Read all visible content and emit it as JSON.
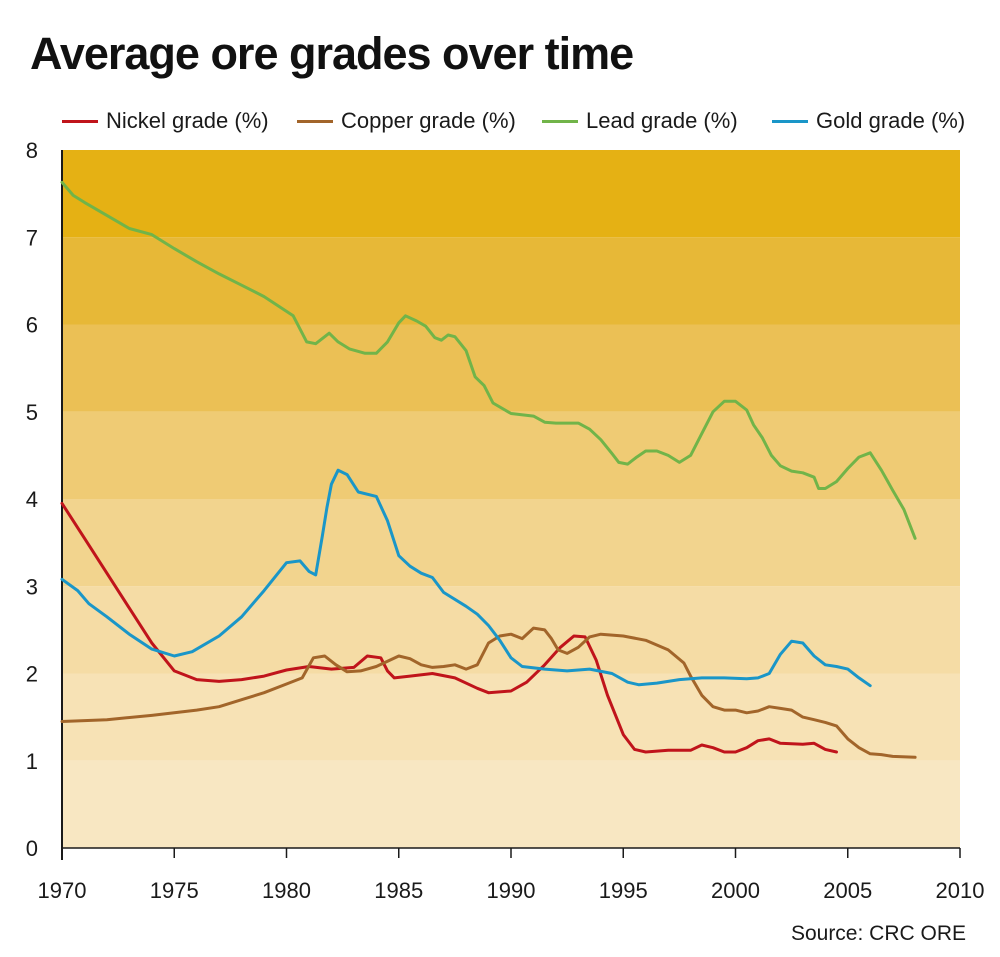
{
  "title": "Average ore grades over time",
  "source": "Source: CRC ORE",
  "chart_data": {
    "type": "line",
    "title": "Average ore grades over time",
    "xlabel": "",
    "ylabel": "",
    "xlim": [
      1970,
      2010
    ],
    "ylim": [
      0,
      8
    ],
    "x_ticks": [
      1970,
      1975,
      1980,
      1985,
      1990,
      1995,
      2000,
      2005,
      2010
    ],
    "y_ticks": [
      0,
      1,
      2,
      3,
      4,
      5,
      6,
      7,
      8
    ],
    "grid": false,
    "legend_position": "top",
    "background_bands": [
      {
        "from": 0,
        "to": 1,
        "color": "#f8e7c2"
      },
      {
        "from": 1,
        "to": 2,
        "color": "#f7e2b5"
      },
      {
        "from": 2,
        "to": 3,
        "color": "#f5dca5"
      },
      {
        "from": 3,
        "to": 4,
        "color": "#f2d48e"
      },
      {
        "from": 4,
        "to": 5,
        "color": "#efcb74"
      },
      {
        "from": 5,
        "to": 6,
        "color": "#ebc055"
      },
      {
        "from": 6,
        "to": 7,
        "color": "#e7b837"
      },
      {
        "from": 7,
        "to": 8,
        "color": "#e5b114"
      }
    ],
    "series": [
      {
        "name": "Nickel grade (%)",
        "color": "#c0141b",
        "points": [
          [
            1970,
            3.95
          ],
          [
            1971,
            3.55
          ],
          [
            1972,
            3.15
          ],
          [
            1973,
            2.75
          ],
          [
            1974,
            2.35
          ],
          [
            1975,
            2.03
          ],
          [
            1976,
            1.93
          ],
          [
            1977,
            1.91
          ],
          [
            1978,
            1.93
          ],
          [
            1979,
            1.97
          ],
          [
            1980,
            2.04
          ],
          [
            1981,
            2.08
          ],
          [
            1982,
            2.05
          ],
          [
            1983,
            2.07
          ],
          [
            1983.6,
            2.2
          ],
          [
            1984.2,
            2.18
          ],
          [
            1984.5,
            2.03
          ],
          [
            1984.8,
            1.95
          ],
          [
            1985.5,
            1.97
          ],
          [
            1986.5,
            2.0
          ],
          [
            1987.5,
            1.95
          ],
          [
            1988.5,
            1.83
          ],
          [
            1989,
            1.78
          ],
          [
            1990,
            1.8
          ],
          [
            1990.7,
            1.9
          ],
          [
            1991.5,
            2.1
          ],
          [
            1992.2,
            2.3
          ],
          [
            1992.8,
            2.43
          ],
          [
            1993.3,
            2.42
          ],
          [
            1993.8,
            2.15
          ],
          [
            1994.3,
            1.75
          ],
          [
            1995,
            1.3
          ],
          [
            1995.5,
            1.13
          ],
          [
            1996,
            1.1
          ],
          [
            1997,
            1.12
          ],
          [
            1998,
            1.12
          ],
          [
            1998.5,
            1.18
          ],
          [
            1999,
            1.15
          ],
          [
            1999.5,
            1.1
          ],
          [
            2000,
            1.1
          ],
          [
            2000.5,
            1.15
          ],
          [
            2001,
            1.23
          ],
          [
            2001.5,
            1.25
          ],
          [
            2002,
            1.2
          ],
          [
            2003,
            1.19
          ],
          [
            2003.5,
            1.2
          ],
          [
            2004,
            1.13
          ],
          [
            2004.5,
            1.1
          ]
        ]
      },
      {
        "name": "Copper grade (%)",
        "color": "#a2652a",
        "points": [
          [
            1970,
            1.45
          ],
          [
            1972,
            1.47
          ],
          [
            1974,
            1.52
          ],
          [
            1976,
            1.58
          ],
          [
            1977,
            1.62
          ],
          [
            1978,
            1.7
          ],
          [
            1979,
            1.78
          ],
          [
            1980,
            1.88
          ],
          [
            1980.7,
            1.95
          ],
          [
            1981.2,
            2.18
          ],
          [
            1981.7,
            2.2
          ],
          [
            1982.2,
            2.1
          ],
          [
            1982.7,
            2.02
          ],
          [
            1983.3,
            2.03
          ],
          [
            1984,
            2.08
          ],
          [
            1985,
            2.2
          ],
          [
            1985.5,
            2.17
          ],
          [
            1986,
            2.1
          ],
          [
            1986.5,
            2.07
          ],
          [
            1987,
            2.08
          ],
          [
            1987.5,
            2.1
          ],
          [
            1988,
            2.05
          ],
          [
            1988.5,
            2.1
          ],
          [
            1989,
            2.35
          ],
          [
            1989.5,
            2.43
          ],
          [
            1990,
            2.45
          ],
          [
            1990.5,
            2.4
          ],
          [
            1991,
            2.52
          ],
          [
            1991.5,
            2.5
          ],
          [
            1991.8,
            2.4
          ],
          [
            1992.1,
            2.27
          ],
          [
            1992.5,
            2.23
          ],
          [
            1993,
            2.3
          ],
          [
            1993.5,
            2.42
          ],
          [
            1994,
            2.45
          ],
          [
            1995,
            2.43
          ],
          [
            1996,
            2.38
          ],
          [
            1997,
            2.27
          ],
          [
            1997.7,
            2.12
          ],
          [
            1998,
            1.97
          ],
          [
            1998.5,
            1.75
          ],
          [
            1999,
            1.62
          ],
          [
            1999.5,
            1.58
          ],
          [
            2000,
            1.58
          ],
          [
            2000.5,
            1.55
          ],
          [
            2001,
            1.57
          ],
          [
            2001.5,
            1.62
          ],
          [
            2002,
            1.6
          ],
          [
            2002.5,
            1.58
          ],
          [
            2003,
            1.5
          ],
          [
            2003.5,
            1.47
          ],
          [
            2004,
            1.44
          ],
          [
            2004.5,
            1.4
          ],
          [
            2005,
            1.25
          ],
          [
            2005.5,
            1.15
          ],
          [
            2006,
            1.08
          ],
          [
            2006.5,
            1.07
          ],
          [
            2007,
            1.05
          ],
          [
            2008,
            1.04
          ]
        ]
      },
      {
        "name": "Lead grade (%)",
        "color": "#71b449",
        "points": [
          [
            1970,
            7.63
          ],
          [
            1970.5,
            7.48
          ],
          [
            1971,
            7.4
          ],
          [
            1972,
            7.25
          ],
          [
            1973,
            7.1
          ],
          [
            1974,
            7.03
          ],
          [
            1975,
            6.87
          ],
          [
            1976,
            6.72
          ],
          [
            1977,
            6.58
          ],
          [
            1978,
            6.45
          ],
          [
            1979,
            6.32
          ],
          [
            1980.3,
            6.1
          ],
          [
            1980.9,
            5.8
          ],
          [
            1981.3,
            5.78
          ],
          [
            1981.9,
            5.9
          ],
          [
            1982.3,
            5.8
          ],
          [
            1982.8,
            5.72
          ],
          [
            1983.5,
            5.67
          ],
          [
            1984,
            5.67
          ],
          [
            1984.5,
            5.8
          ],
          [
            1985,
            6.02
          ],
          [
            1985.3,
            6.1
          ],
          [
            1985.8,
            6.04
          ],
          [
            1986.2,
            5.98
          ],
          [
            1986.6,
            5.85
          ],
          [
            1986.9,
            5.82
          ],
          [
            1987.2,
            5.88
          ],
          [
            1987.5,
            5.86
          ],
          [
            1988,
            5.7
          ],
          [
            1988.4,
            5.4
          ],
          [
            1988.8,
            5.3
          ],
          [
            1989.2,
            5.1
          ],
          [
            1990,
            4.98
          ],
          [
            1991,
            4.95
          ],
          [
            1991.5,
            4.88
          ],
          [
            1992,
            4.87
          ],
          [
            1993,
            4.87
          ],
          [
            1993.5,
            4.8
          ],
          [
            1994,
            4.68
          ],
          [
            1994.5,
            4.52
          ],
          [
            1994.8,
            4.42
          ],
          [
            1995.2,
            4.4
          ],
          [
            1995.6,
            4.48
          ],
          [
            1996,
            4.55
          ],
          [
            1996.5,
            4.55
          ],
          [
            1997,
            4.5
          ],
          [
            1997.5,
            4.42
          ],
          [
            1998,
            4.5
          ],
          [
            1998.5,
            4.75
          ],
          [
            1999,
            5.0
          ],
          [
            1999.5,
            5.12
          ],
          [
            2000,
            5.12
          ],
          [
            2000.5,
            5.02
          ],
          [
            2000.8,
            4.85
          ],
          [
            2001.2,
            4.7
          ],
          [
            2001.6,
            4.5
          ],
          [
            2002,
            4.38
          ],
          [
            2002.5,
            4.32
          ],
          [
            2003,
            4.3
          ],
          [
            2003.5,
            4.25
          ],
          [
            2003.7,
            4.12
          ],
          [
            2004,
            4.12
          ],
          [
            2004.5,
            4.2
          ],
          [
            2005,
            4.35
          ],
          [
            2005.5,
            4.48
          ],
          [
            2006,
            4.53
          ],
          [
            2006.5,
            4.33
          ],
          [
            2007,
            4.1
          ],
          [
            2007.5,
            3.88
          ],
          [
            2008,
            3.55
          ]
        ]
      },
      {
        "name": "Gold grade (%)",
        "color": "#1a96c8",
        "points": [
          [
            1970,
            3.08
          ],
          [
            1970.7,
            2.95
          ],
          [
            1971.2,
            2.8
          ],
          [
            1972,
            2.65
          ],
          [
            1973,
            2.45
          ],
          [
            1974,
            2.28
          ],
          [
            1975,
            2.2
          ],
          [
            1975.8,
            2.25
          ],
          [
            1977,
            2.43
          ],
          [
            1978,
            2.65
          ],
          [
            1979,
            2.95
          ],
          [
            1980,
            3.27
          ],
          [
            1980.6,
            3.29
          ],
          [
            1981,
            3.17
          ],
          [
            1981.3,
            3.13
          ],
          [
            1981.6,
            3.58
          ],
          [
            1981.8,
            3.9
          ],
          [
            1982,
            4.17
          ],
          [
            1982.3,
            4.33
          ],
          [
            1982.7,
            4.28
          ],
          [
            1983.2,
            4.08
          ],
          [
            1984,
            4.03
          ],
          [
            1984.5,
            3.75
          ],
          [
            1985,
            3.35
          ],
          [
            1985.5,
            3.23
          ],
          [
            1986,
            3.15
          ],
          [
            1986.5,
            3.1
          ],
          [
            1987,
            2.93
          ],
          [
            1988,
            2.77
          ],
          [
            1988.5,
            2.68
          ],
          [
            1989,
            2.55
          ],
          [
            1989.5,
            2.38
          ],
          [
            1990,
            2.18
          ],
          [
            1990.5,
            2.08
          ],
          [
            1991.5,
            2.05
          ],
          [
            1992.5,
            2.03
          ],
          [
            1993.5,
            2.05
          ],
          [
            1994.5,
            2.0
          ],
          [
            1995.2,
            1.9
          ],
          [
            1995.7,
            1.87
          ],
          [
            1996.5,
            1.89
          ],
          [
            1997.5,
            1.93
          ],
          [
            1998.5,
            1.95
          ],
          [
            1999.5,
            1.95
          ],
          [
            2000.5,
            1.94
          ],
          [
            2001,
            1.95
          ],
          [
            2001.5,
            2.0
          ],
          [
            2002,
            2.22
          ],
          [
            2002.5,
            2.37
          ],
          [
            2003,
            2.35
          ],
          [
            2003.5,
            2.2
          ],
          [
            2004,
            2.1
          ],
          [
            2004.5,
            2.08
          ],
          [
            2005,
            2.05
          ],
          [
            2005.5,
            1.95
          ],
          [
            2006,
            1.86
          ]
        ]
      }
    ]
  }
}
